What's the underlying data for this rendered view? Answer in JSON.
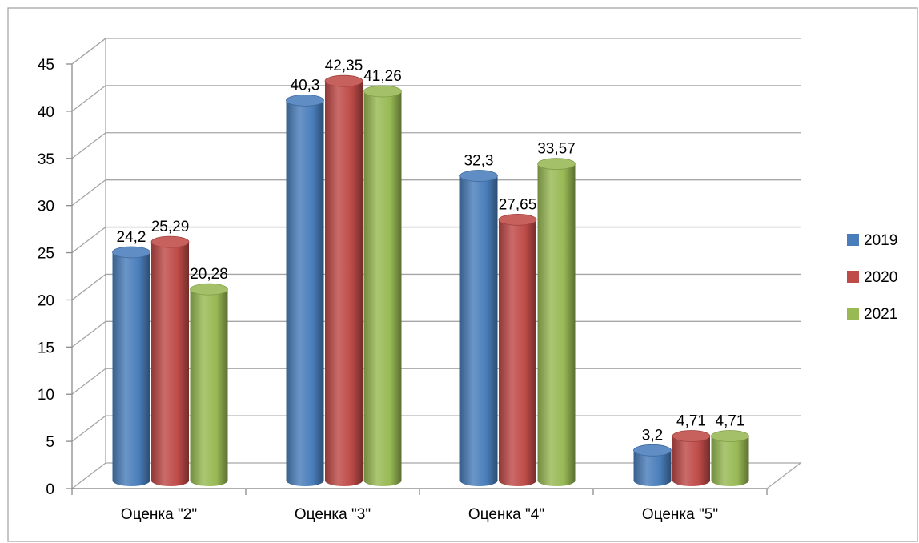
{
  "chart_data": {
    "type": "bar",
    "categories": [
      "Оценка \"2\"",
      "Оценка \"3\"",
      "Оценка \"4\"",
      "Оценка \"5\""
    ],
    "series": [
      {
        "name": "2019",
        "values": [
          24.2,
          40.3,
          32.3,
          3.2
        ],
        "labels": [
          "24,2",
          "40,3",
          "32,3",
          "3,2"
        ],
        "color": "#4a7ebb"
      },
      {
        "name": "2020",
        "values": [
          25.29,
          42.35,
          27.65,
          4.71
        ],
        "labels": [
          "25,29",
          "42,35",
          "27,65",
          "4,71"
        ],
        "color": "#be4b48"
      },
      {
        "name": "2021",
        "values": [
          20.28,
          41.26,
          33.57,
          4.71
        ],
        "labels": [
          "20,28",
          "41,26",
          "33,57",
          "4,71"
        ],
        "color": "#98b954"
      }
    ],
    "ylim": [
      0,
      45
    ],
    "y_ticks": [
      "0",
      "5",
      "10",
      "15",
      "20",
      "25",
      "30",
      "35",
      "40",
      "45"
    ],
    "grid": true,
    "legend_position": "right",
    "style": "3d-cylinder"
  }
}
